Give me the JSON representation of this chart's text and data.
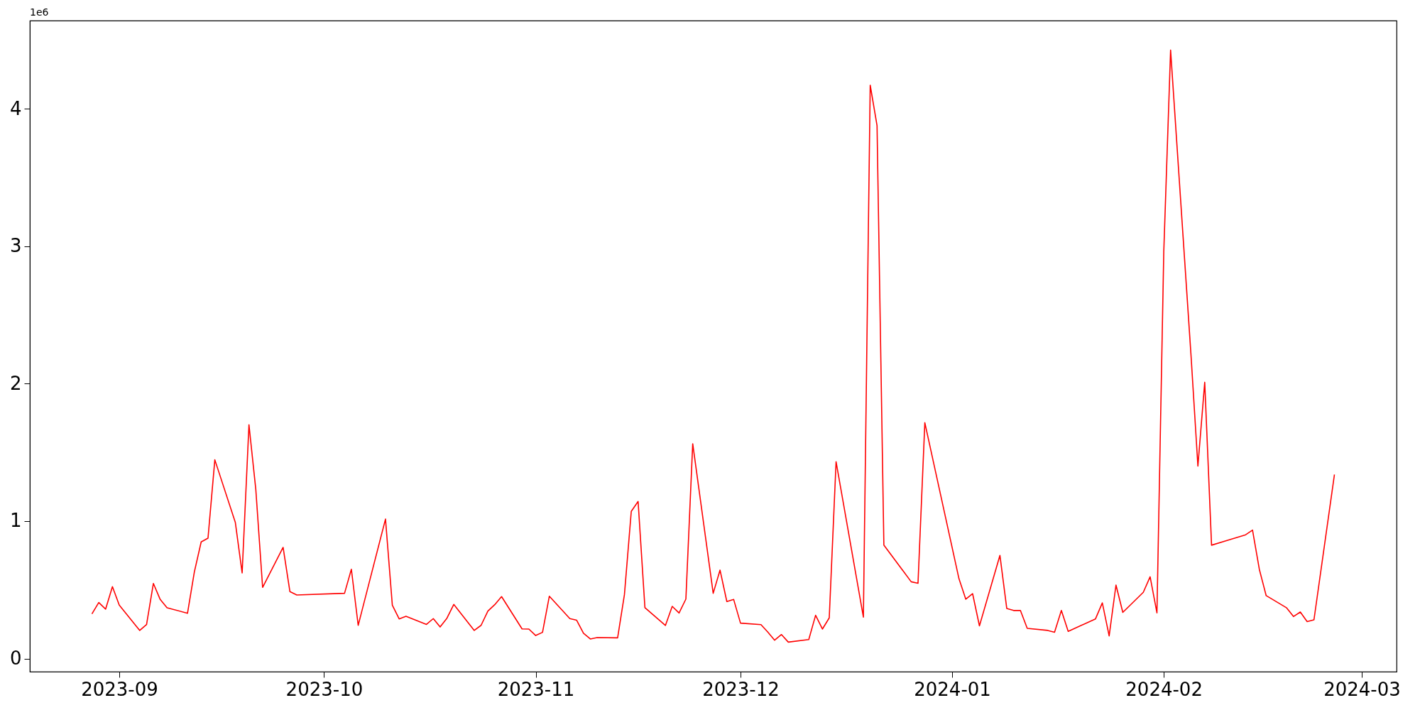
{
  "chart_data": {
    "type": "line",
    "x": [
      "2023-08-28",
      "2023-08-29",
      "2023-08-30",
      "2023-08-31",
      "2023-09-01",
      "2023-09-04",
      "2023-09-05",
      "2023-09-06",
      "2023-09-07",
      "2023-09-08",
      "2023-09-11",
      "2023-09-12",
      "2023-09-13",
      "2023-09-14",
      "2023-09-15",
      "2023-09-18",
      "2023-09-19",
      "2023-09-20",
      "2023-09-21",
      "2023-09-22",
      "2023-09-25",
      "2023-09-26",
      "2023-09-27",
      "2023-10-04",
      "2023-10-05",
      "2023-10-06",
      "2023-10-10",
      "2023-10-11",
      "2023-10-12",
      "2023-10-13",
      "2023-10-16",
      "2023-10-17",
      "2023-10-18",
      "2023-10-19",
      "2023-10-20",
      "2023-10-23",
      "2023-10-24",
      "2023-10-25",
      "2023-10-26",
      "2023-10-27",
      "2023-10-30",
      "2023-10-31",
      "2023-11-01",
      "2023-11-02",
      "2023-11-03",
      "2023-11-06",
      "2023-11-07",
      "2023-11-08",
      "2023-11-09",
      "2023-11-10",
      "2023-11-13",
      "2023-11-14",
      "2023-11-15",
      "2023-11-16",
      "2023-11-17",
      "2023-11-20",
      "2023-11-21",
      "2023-11-22",
      "2023-11-23",
      "2023-11-24",
      "2023-11-27",
      "2023-11-28",
      "2023-11-29",
      "2023-11-30",
      "2023-12-01",
      "2023-12-04",
      "2023-12-05",
      "2023-12-06",
      "2023-12-07",
      "2023-12-08",
      "2023-12-11",
      "2023-12-12",
      "2023-12-13",
      "2023-12-14",
      "2023-12-15",
      "2023-12-19",
      "2023-12-20",
      "2023-12-21",
      "2023-12-22",
      "2023-12-26",
      "2023-12-27",
      "2023-12-28",
      "2024-01-02",
      "2024-01-03",
      "2024-01-04",
      "2024-01-05",
      "2024-01-08",
      "2024-01-09",
      "2024-01-10",
      "2024-01-11",
      "2024-01-12",
      "2024-01-15",
      "2024-01-16",
      "2024-01-17",
      "2024-01-18",
      "2024-01-22",
      "2024-01-23",
      "2024-01-24",
      "2024-01-25",
      "2024-01-26",
      "2024-01-29",
      "2024-01-30",
      "2024-01-31",
      "2024-02-01",
      "2024-02-02",
      "2024-02-05",
      "2024-02-06",
      "2024-02-07",
      "2024-02-08",
      "2024-02-13",
      "2024-02-14",
      "2024-02-15",
      "2024-02-16",
      "2024-02-19",
      "2024-02-20",
      "2024-02-21",
      "2024-02-22",
      "2024-02-23",
      "2024-02-26"
    ],
    "series": [
      {
        "color": "#ff0000",
        "values": [
          0.325,
          0.408,
          0.36,
          0.523,
          0.389,
          0.205,
          0.248,
          0.547,
          0.43,
          0.37,
          0.33,
          0.63,
          0.849,
          0.876,
          1.446,
          0.991,
          0.623,
          1.701,
          1.232,
          0.518,
          0.809,
          0.487,
          0.463,
          0.475,
          0.65,
          0.242,
          1.015,
          0.389,
          0.289,
          0.308,
          0.249,
          0.291,
          0.23,
          0.294,
          0.394,
          0.205,
          0.242,
          0.346,
          0.392,
          0.451,
          0.216,
          0.215,
          0.168,
          0.191,
          0.454,
          0.291,
          0.279,
          0.184,
          0.143,
          0.153,
          0.151,
          0.466,
          1.071,
          1.143,
          0.37,
          0.241,
          0.38,
          0.332,
          0.433,
          1.563,
          0.475,
          0.644,
          0.415,
          0.43,
          0.258,
          0.247,
          0.193,
          0.134,
          0.175,
          0.12,
          0.139,
          0.315,
          0.215,
          0.296,
          1.432,
          0.302,
          4.171,
          3.877,
          0.826,
          0.559,
          0.548,
          1.716,
          0.581,
          0.432,
          0.472,
          0.238,
          0.751,
          0.365,
          0.35,
          0.35,
          0.22,
          0.205,
          0.192,
          0.35,
          0.198,
          0.289,
          0.405,
          0.165,
          0.535,
          0.336,
          0.482,
          0.595,
          0.333,
          2.958,
          4.426,
          2.199,
          1.4,
          2.01,
          0.825,
          0.901,
          0.935,
          0.649,
          0.458,
          0.369,
          0.306,
          0.339,
          0.269,
          0.282,
          1.339
        ]
      }
    ],
    "xlim": [
      "2023-08-18T21:36",
      "2024-03-06T02:24"
    ],
    "xticks": [
      {
        "value": "2023-09-01",
        "label": "2023-09"
      },
      {
        "value": "2023-10-01",
        "label": "2023-10"
      },
      {
        "value": "2023-11-01",
        "label": "2023-11"
      },
      {
        "value": "2023-12-01",
        "label": "2023-12"
      },
      {
        "value": "2024-01-01",
        "label": "2024-01"
      },
      {
        "value": "2024-02-01",
        "label": "2024-02"
      },
      {
        "value": "2024-03-01",
        "label": "2024-03"
      }
    ],
    "ylim": [
      -0.095,
      4.641
    ],
    "yticks": [
      0,
      1,
      2,
      3,
      4
    ],
    "annotations": [
      "1e6"
    ],
    "grid": false,
    "marker": "none",
    "line_style": "solid"
  }
}
